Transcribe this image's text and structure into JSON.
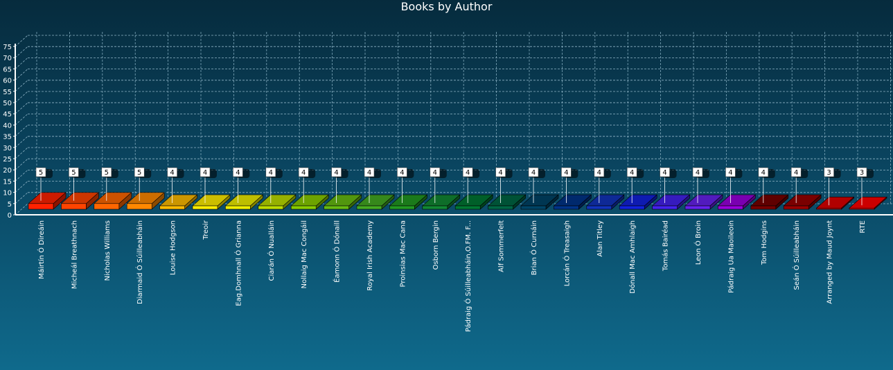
{
  "chart_data": {
    "type": "bar",
    "title": "Books by Author",
    "xlabel": "",
    "ylabel": "",
    "ylim": [
      0,
      75
    ],
    "yticks": [
      0,
      5,
      10,
      15,
      20,
      25,
      30,
      35,
      40,
      45,
      50,
      55,
      60,
      65,
      70,
      75
    ],
    "grid": true,
    "legend": "none",
    "categories": [
      "Máirtín Ó Direáin",
      "Micheál Breathnach",
      "Nicholas Williams",
      "Diarmaid Ó Súilleabháin",
      "Louise Hodgson",
      "Treoir",
      "Eag.Domhnall Ó Grianna",
      "Ciarán Ó Nualláin",
      "Nollaig Mac Congáil",
      "Éamonn Ó Dónaill",
      "Royal Irish Academy",
      "Proinsias Mac Cana",
      "Osborn Bergin",
      "Pádraig Ó Súilleabháin,O.FM. F...",
      "Alf Sommerfelt",
      "Brian Ó Curnáin",
      "Lorcán Ó Treasaigh",
      "Alan Titley",
      "Dónall Mac Amhlaigh",
      "Tomás Bairéad",
      "Leon Ó Broin",
      "Pádraig Ua Maoileoin",
      "Tom Hodgins",
      "Seán Ó Súilleabháin",
      "Arranged by Maud Joynt",
      "RTE"
    ],
    "values": [
      5,
      5,
      5,
      5,
      4,
      4,
      4,
      4,
      4,
      4,
      4,
      4,
      4,
      4,
      4,
      4,
      4,
      4,
      4,
      4,
      4,
      4,
      4,
      4,
      3,
      3
    ],
    "colors": [
      "#ff2200",
      "#ff4400",
      "#ff6600",
      "#ff8800",
      "#ffbb00",
      "#ffee00",
      "#eeee00",
      "#bbdd00",
      "#88cc00",
      "#66bb11",
      "#44aa22",
      "#229922",
      "#118833",
      "#007733",
      "#006644",
      "#004466",
      "#003388",
      "#1133bb",
      "#1122dd",
      "#4422ee",
      "#6622ee",
      "#9900dd",
      "#770000",
      "#990000",
      "#dd0000",
      "#ff0000"
    ]
  }
}
